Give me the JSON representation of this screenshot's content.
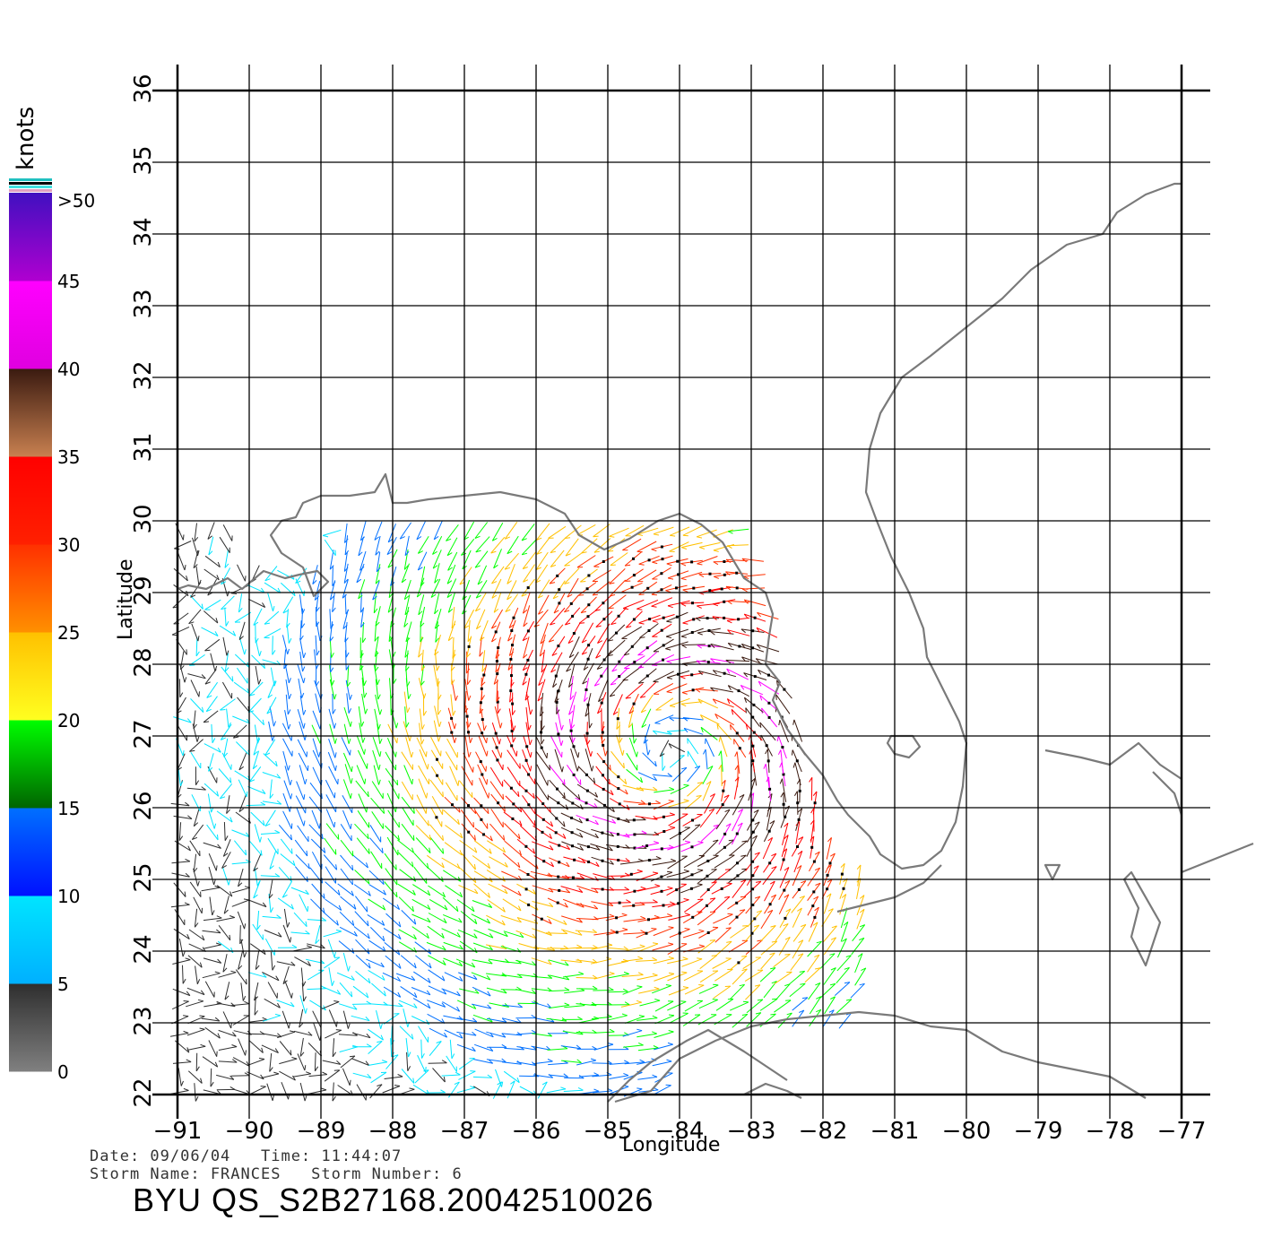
{
  "colorbar": {
    "unit_label": "knots",
    "tick_labels": [
      ">50",
      "45",
      "40",
      "35",
      "30",
      "25",
      "20",
      "15",
      "10",
      "5",
      "0"
    ],
    "segments": [
      {
        "from": 0,
        "to": 5,
        "top": "#2e2e2e",
        "bottom": "#808080"
      },
      {
        "from": 5,
        "to": 10,
        "top": "#00e5ff",
        "bottom": "#00b0ff"
      },
      {
        "from": 10,
        "to": 15,
        "top": "#0070ff",
        "bottom": "#0010ff"
      },
      {
        "from": 15,
        "to": 20,
        "top": "#00ff00",
        "bottom": "#006400"
      },
      {
        "from": 20,
        "to": 25,
        "top": "#ffc000",
        "bottom": "#ffff20"
      },
      {
        "from": 25,
        "to": 30,
        "top": "#ff3000",
        "bottom": "#ff9000"
      },
      {
        "from": 30,
        "to": 35,
        "top": "#ff0000",
        "bottom": "#ff2000"
      },
      {
        "from": 35,
        "to": 40,
        "top": "#3a1a10",
        "bottom": "#c88050"
      },
      {
        "from": 40,
        "to": 45,
        "top": "#ff00ff",
        "bottom": "#e000e0"
      },
      {
        "from": 45,
        "to": 50,
        "top": "#4010c0",
        "bottom": "#b000d0"
      }
    ],
    "top_stripes": [
      "#20c0c0",
      "#000000",
      "#40e0e0",
      "#e0a0c0"
    ]
  },
  "map": {
    "lon_range": [
      -91,
      -77
    ],
    "lat_range": [
      22,
      36
    ],
    "lon_ticks": [
      -91,
      -90,
      -89,
      -88,
      -87,
      -86,
      -85,
      -84,
      -83,
      -82,
      -81,
      -80,
      -79,
      -78,
      -77
    ],
    "lat_ticks": [
      22,
      23,
      24,
      25,
      26,
      27,
      28,
      29,
      30,
      31,
      32,
      33,
      34,
      35,
      36
    ],
    "lon_tick_labels": [
      "−91",
      "−90",
      "−89",
      "−88",
      "−87",
      "−86",
      "−85",
      "−84",
      "−83",
      "−82",
      "−81",
      "−80",
      "−79",
      "−78",
      "−77"
    ],
    "lat_tick_labels": [
      "22",
      "23",
      "24",
      "25",
      "26",
      "27",
      "28",
      "29",
      "30",
      "31",
      "32",
      "33",
      "34",
      "35",
      "36"
    ],
    "xlabel": "Longitude",
    "ylabel": "Latitude",
    "coast_color": "#7a7a7a",
    "grid_color": "#000000",
    "storm_center": {
      "lon": -84.1,
      "lat": 26.8
    }
  },
  "chart_data": {
    "type": "wind_vector_field",
    "units": "knots",
    "lon_range": [
      -91,
      -77
    ],
    "lat_range": [
      22,
      36
    ],
    "swath_lon_range": [
      -91,
      -81.3
    ],
    "swath_lat_range": [
      22,
      30
    ],
    "max_speed_knots": 42,
    "storm_center": {
      "lon": -84.1,
      "lat": 26.8
    }
  },
  "footer": {
    "date_line": "Date: 09/06/04   Time: 11:44:07",
    "storm_line": "Storm Name: FRANCES   Storm Number: 6",
    "title": "BYU QS_S2B27168.20042510026"
  }
}
